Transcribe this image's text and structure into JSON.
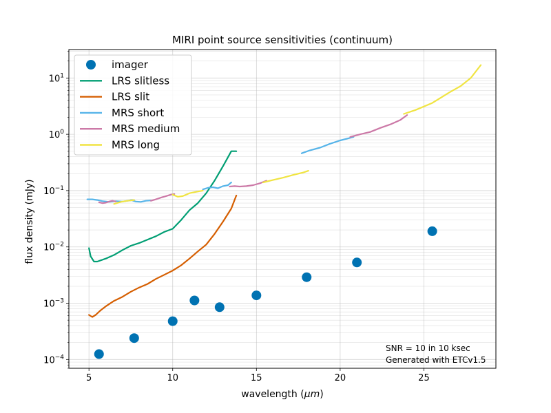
{
  "chart_data": {
    "type": "line",
    "title": "MIRI point source sensitivities (continuum)",
    "xlabel": "wavelength (",
    "xlabel_unit": "μm",
    "xlabel_close": ")",
    "ylabel": "flux density (mJy)",
    "xlim": [
      3.8,
      29.3
    ],
    "ylim": [
      7e-05,
      32
    ],
    "yscale": "log",
    "grid": true,
    "legend_position": "upper-left",
    "x_ticks": [
      "5",
      "10",
      "15",
      "20",
      "25"
    ],
    "y_ticks": [
      {
        "base": "10",
        "exp": "−4",
        "value": 0.0001
      },
      {
        "base": "10",
        "exp": "−3",
        "value": 0.001
      },
      {
        "base": "10",
        "exp": "−2",
        "value": 0.01
      },
      {
        "base": "10",
        "exp": "−1",
        "value": 0.1
      },
      {
        "base": "10",
        "exp": "0",
        "value": 1
      },
      {
        "base": "10",
        "exp": "1",
        "value": 10
      }
    ],
    "annotations": [
      "SNR = 10 in 10 ksec",
      "Generated with ETCv1.5"
    ],
    "series": [
      {
        "name": "imager",
        "kind": "scatter",
        "color": "#0072b2",
        "x": [
          5.6,
          7.7,
          10.0,
          11.3,
          12.8,
          15.0,
          18.0,
          21.0,
          25.5
        ],
        "y": [
          0.000125,
          0.00024,
          0.00048,
          0.00112,
          0.00085,
          0.00138,
          0.0029,
          0.0053,
          0.019
        ]
      },
      {
        "name": "LRS slitless",
        "kind": "line",
        "color": "#009e73",
        "x": [
          5.0,
          5.1,
          5.3,
          5.5,
          6.0,
          6.5,
          7.0,
          7.5,
          8.0,
          8.5,
          9.0,
          9.5,
          10.0,
          10.5,
          11.0,
          11.5,
          12.0,
          12.5,
          13.0,
          13.5,
          13.8
        ],
        "y": [
          0.0095,
          0.0068,
          0.0055,
          0.0055,
          0.0062,
          0.0072,
          0.0088,
          0.0105,
          0.0117,
          0.0135,
          0.0155,
          0.0185,
          0.021,
          0.03,
          0.045,
          0.06,
          0.09,
          0.15,
          0.27,
          0.5,
          0.5
        ]
      },
      {
        "name": "LRS slit",
        "kind": "line",
        "color": "#d55e00",
        "x": [
          5.0,
          5.2,
          5.4,
          5.7,
          6.0,
          6.5,
          7.0,
          7.5,
          8.0,
          8.5,
          9.0,
          9.5,
          10.0,
          10.5,
          11.0,
          11.5,
          12.0,
          12.5,
          13.0,
          13.5,
          13.8
        ],
        "y": [
          0.00062,
          0.00057,
          0.00062,
          0.00075,
          0.00088,
          0.0011,
          0.0013,
          0.0016,
          0.0019,
          0.0022,
          0.0027,
          0.0032,
          0.0038,
          0.0047,
          0.0062,
          0.0083,
          0.011,
          0.017,
          0.028,
          0.048,
          0.082
        ]
      },
      {
        "name": "MRS short",
        "kind": "line",
        "color": "#56b4e9",
        "x": [
          4.9,
          5.2,
          5.5,
          5.8,
          6.2,
          6.6,
          7.0,
          7.3,
          7.6
        ],
        "y": [
          0.07,
          0.07,
          0.068,
          0.065,
          0.063,
          0.065,
          0.064,
          0.066,
          0.068
        ],
        "segments": [
          {
            "x": [
              4.9,
              5.2,
              5.5,
              5.8,
              6.2,
              6.6,
              7.0,
              7.3,
              7.6
            ],
            "y": [
              0.07,
              0.07,
              0.068,
              0.065,
              0.063,
              0.065,
              0.064,
              0.066,
              0.068
            ]
          },
          {
            "x": [
              7.5,
              7.8,
              8.1,
              8.4,
              8.7
            ],
            "y": [
              0.068,
              0.064,
              0.063,
              0.066,
              0.067
            ]
          },
          {
            "x": [
              11.8,
              12.1,
              12.4,
              12.7,
              13.0,
              13.3,
              13.5
            ],
            "y": [
              0.105,
              0.112,
              0.115,
              0.11,
              0.12,
              0.125,
              0.14
            ]
          },
          {
            "x": [
              17.7,
              18.2,
              18.8,
              19.4,
              20.0,
              20.5,
              20.8
            ],
            "y": [
              0.46,
              0.52,
              0.58,
              0.68,
              0.78,
              0.85,
              0.9
            ]
          }
        ]
      },
      {
        "name": "MRS medium",
        "kind": "line",
        "color": "#cc79a7",
        "segments": [
          {
            "x": [
              5.6,
              5.8,
              6.0,
              6.2,
              6.4,
              6.6
            ],
            "y": [
              0.062,
              0.06,
              0.061,
              0.064,
              0.066,
              0.064
            ]
          },
          {
            "x": [
              8.7,
              9.0,
              9.3,
              9.6,
              9.9,
              10.1
            ],
            "y": [
              0.066,
              0.07,
              0.075,
              0.08,
              0.085,
              0.087
            ]
          },
          {
            "x": [
              13.4,
              13.7,
              14.0,
              14.4,
              14.8,
              15.2,
              15.6
            ],
            "y": [
              0.118,
              0.12,
              0.118,
              0.12,
              0.125,
              0.135,
              0.15
            ]
          },
          {
            "x": [
              20.6,
              21.2,
              21.8,
              22.4,
              23.0,
              23.6,
              24.0
            ],
            "y": [
              0.9,
              1.0,
              1.1,
              1.3,
              1.5,
              1.8,
              2.2
            ]
          }
        ]
      },
      {
        "name": "MRS long",
        "kind": "line",
        "color": "#f0e442",
        "segments": [
          {
            "x": [
              6.5,
              6.9,
              7.3,
              7.7
            ],
            "y": [
              0.058,
              0.063,
              0.066,
              0.068
            ]
          },
          {
            "x": [
              10.0,
              10.3,
              10.6,
              11.0,
              11.4,
              11.8
            ],
            "y": [
              0.085,
              0.078,
              0.08,
              0.09,
              0.095,
              0.1
            ]
          },
          {
            "x": [
              15.4,
              16.0,
              16.6,
              17.2,
              17.8,
              18.1
            ],
            "y": [
              0.14,
              0.155,
              0.17,
              0.19,
              0.21,
              0.225
            ]
          },
          {
            "x": [
              23.8,
              24.5,
              25.5,
              26.5,
              27.2,
              27.8,
              28.4
            ],
            "y": [
              2.3,
              2.7,
              3.6,
              5.5,
              7.2,
              10.0,
              17.0
            ]
          }
        ]
      }
    ]
  }
}
